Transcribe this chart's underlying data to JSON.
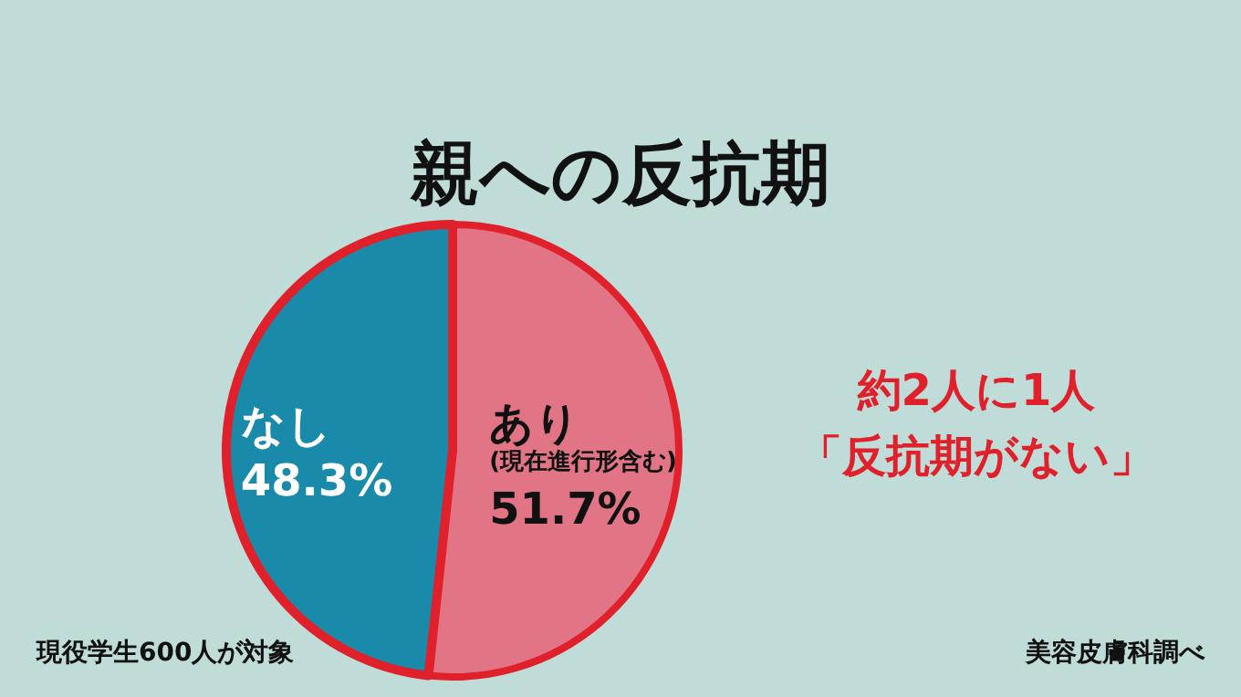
{
  "chart_data": {
    "type": "pie",
    "title": "親への反抗期",
    "categories": [
      "あり\n(現在進行形含む)",
      "なし"
    ],
    "values": [
      51.7,
      48.3
    ],
    "colors": [
      "#e27585",
      "#1a8aaa"
    ],
    "value_labels": [
      "51.7%",
      "48.3%"
    ],
    "annotations": [
      "約2人に1人",
      "「反抗期がない」",
      "現役学生600人が対象",
      "美容皮膚科調べ"
    ]
  }
}
